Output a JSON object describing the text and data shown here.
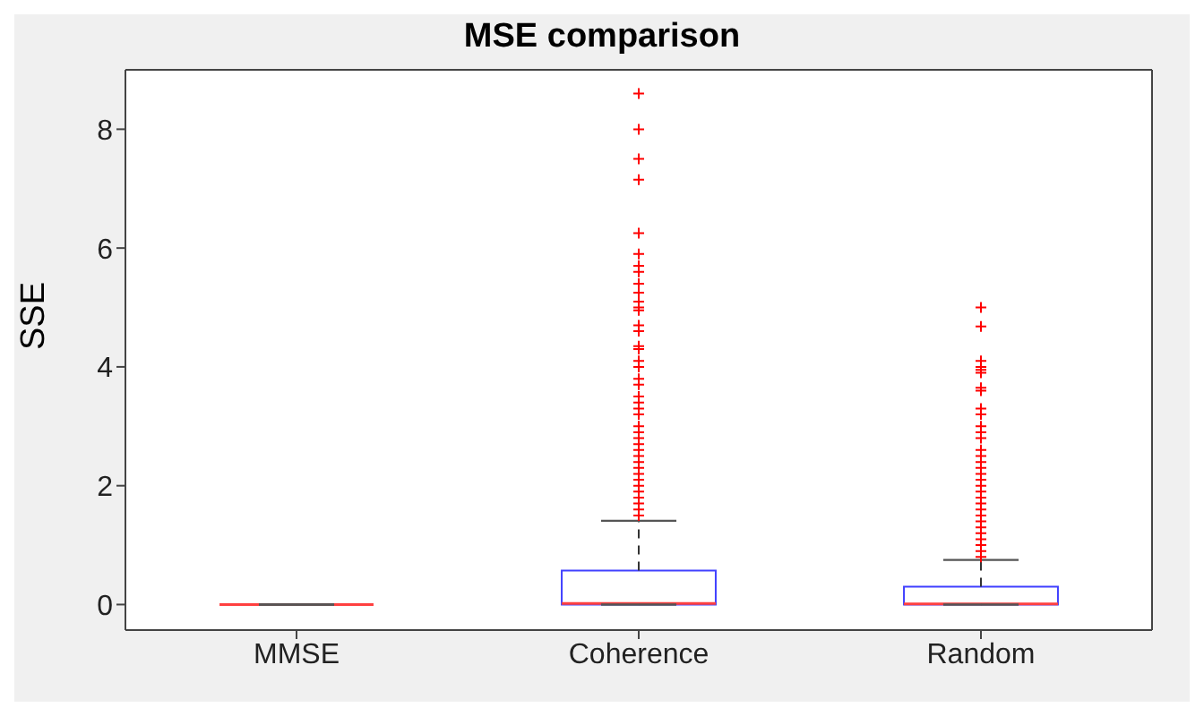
{
  "chart_data": {
    "type": "box",
    "title": "MSE comparison",
    "ylabel": "SSE",
    "categories": [
      "MMSE",
      "Coherence",
      "Random"
    ],
    "boxes": [
      {
        "low": 0,
        "q1": 0,
        "median": 0,
        "q3": 0,
        "high": 0
      },
      {
        "low": 0,
        "q1": 0,
        "median": 0.02,
        "q3": 0.57,
        "high": 1.41,
        "outliers": [
          8.6,
          8.0,
          7.5,
          7.15,
          6.25,
          5.9,
          5.7,
          5.6,
          5.4,
          5.25,
          5.1,
          5.0,
          4.95,
          4.7,
          4.6,
          4.35,
          4.3,
          4.1,
          4.0,
          3.8,
          3.7,
          3.5,
          3.4,
          3.3,
          3.2,
          3.0,
          2.9,
          2.8,
          2.7,
          2.6,
          2.5,
          2.4,
          2.3,
          2.2,
          2.1,
          2.0,
          1.9,
          1.8,
          1.7,
          1.6,
          1.5
        ]
      },
      {
        "low": 0,
        "q1": 0,
        "median": 0.01,
        "q3": 0.3,
        "high": 0.75,
        "outliers": [
          5.0,
          4.68,
          4.1,
          4.0,
          3.95,
          3.9,
          3.65,
          3.6,
          3.3,
          3.2,
          3.0,
          2.9,
          2.8,
          2.6,
          2.5,
          2.4,
          2.3,
          2.2,
          2.1,
          2.0,
          1.9,
          1.8,
          1.7,
          1.6,
          1.5,
          1.4,
          1.3,
          1.2,
          1.1,
          1.0,
          0.9,
          0.8
        ]
      }
    ],
    "ylim": [
      -0.43,
      9
    ],
    "yticks": [
      0,
      2,
      4,
      6,
      8
    ],
    "grid": false
  }
}
